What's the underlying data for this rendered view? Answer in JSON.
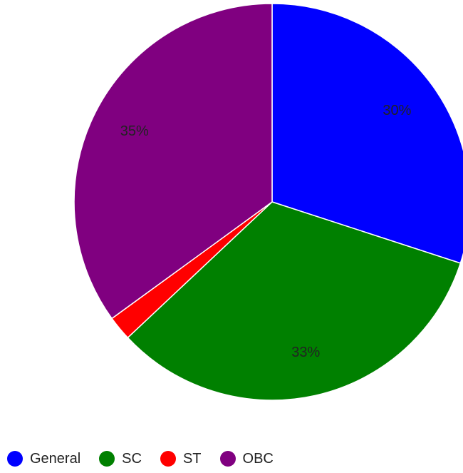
{
  "chart_data": {
    "type": "pie",
    "title": "",
    "categories": [
      "General",
      "SC",
      "ST",
      "OBC"
    ],
    "values": [
      30,
      33,
      2,
      35
    ],
    "labels": [
      "30%",
      "33%",
      "",
      "35%"
    ],
    "colors": [
      "#0000ff",
      "#008000",
      "#ff0000",
      "#800080"
    ],
    "legend": {
      "position": "bottom",
      "items": [
        {
          "label": "General",
          "color": "#0000ff"
        },
        {
          "label": "SC",
          "color": "#008000"
        },
        {
          "label": "ST",
          "color": "#ff0000"
        },
        {
          "label": "OBC",
          "color": "#800080"
        }
      ]
    }
  }
}
